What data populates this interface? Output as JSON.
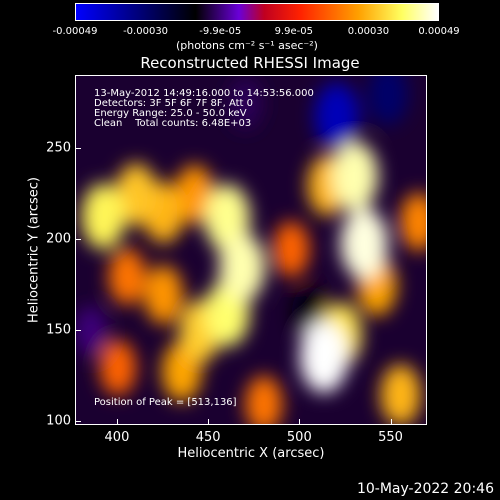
{
  "colorbar": {
    "ticks": [
      "-0.00049",
      "-0.00030",
      "-9.9e-05",
      "9.9e-05",
      "0.00030",
      "0.00049"
    ],
    "tick_values": [
      -0.00049,
      -0.0003,
      -9.9e-05,
      9.9e-05,
      0.0003,
      0.00049
    ],
    "unit_text": "(photons cm⁻² s⁻¹ asec⁻²)",
    "colors": [
      "#0000ff",
      "#000000",
      "#7b00ff",
      "#ff0000",
      "#ffaa00",
      "#ffff66",
      "#ffffff"
    ]
  },
  "chart_data": {
    "type": "heatmap",
    "title": "Reconstructed RHESSI Image",
    "xlabel": "Heliocentric X (arcsec)",
    "ylabel": "Heliocentric Y (arcsec)",
    "xlim": [
      377,
      570
    ],
    "ylim": [
      98,
      290
    ],
    "x_ticks": [
      400,
      450,
      500,
      550
    ],
    "y_ticks": [
      100,
      150,
      200,
      250
    ],
    "value_range": [
      -0.00049,
      0.00049
    ],
    "peak": {
      "x": 513,
      "y": 136
    },
    "sources": [
      {
        "x": 392,
        "y": 213,
        "value": 0.00038
      },
      {
        "x": 410,
        "y": 225,
        "value": 0.00032
      },
      {
        "x": 425,
        "y": 215,
        "value": 0.0003
      },
      {
        "x": 442,
        "y": 225,
        "value": 0.00026
      },
      {
        "x": 460,
        "y": 212,
        "value": 0.00042
      },
      {
        "x": 468,
        "y": 185,
        "value": 0.00044
      },
      {
        "x": 460,
        "y": 160,
        "value": 0.0004
      },
      {
        "x": 445,
        "y": 150,
        "value": 0.00033
      },
      {
        "x": 435,
        "y": 128,
        "value": 0.00028
      },
      {
        "x": 425,
        "y": 170,
        "value": 0.00026
      },
      {
        "x": 405,
        "y": 180,
        "value": 0.00022
      },
      {
        "x": 495,
        "y": 195,
        "value": 0.0002
      },
      {
        "x": 515,
        "y": 230,
        "value": 0.0003
      },
      {
        "x": 530,
        "y": 235,
        "value": 0.00044
      },
      {
        "x": 535,
        "y": 198,
        "value": 0.00047
      },
      {
        "x": 542,
        "y": 175,
        "value": 0.00028
      },
      {
        "x": 522,
        "y": 148,
        "value": 0.00036
      },
      {
        "x": 513,
        "y": 136,
        "value": 0.00049
      },
      {
        "x": 555,
        "y": 115,
        "value": 0.0003
      },
      {
        "x": 480,
        "y": 110,
        "value": 0.00022
      },
      {
        "x": 400,
        "y": 130,
        "value": 0.0002
      },
      {
        "x": 565,
        "y": 210,
        "value": 0.00024
      },
      {
        "x": 520,
        "y": 268,
        "value": -0.0004
      },
      {
        "x": 548,
        "y": 280,
        "value": -0.0003
      },
      {
        "x": 470,
        "y": 275,
        "value": -0.00012
      },
      {
        "x": 505,
        "y": 160,
        "value": -0.00018
      },
      {
        "x": 385,
        "y": 150,
        "value": -0.0001
      }
    ],
    "annotations": {
      "line1": "13-May-2012 14:49:16.000 to 14:53:56.000",
      "line2": "Detectors: 3F 5F 6F 7F 8F, Att 0",
      "line3": "Energy Range: 25.0 - 50.0 keV",
      "line4": "Clean    Total counts: 6.48E+03",
      "peak_text": "Position of Peak = [513,136]"
    }
  },
  "timestamp": "10-May-2022 20:46"
}
